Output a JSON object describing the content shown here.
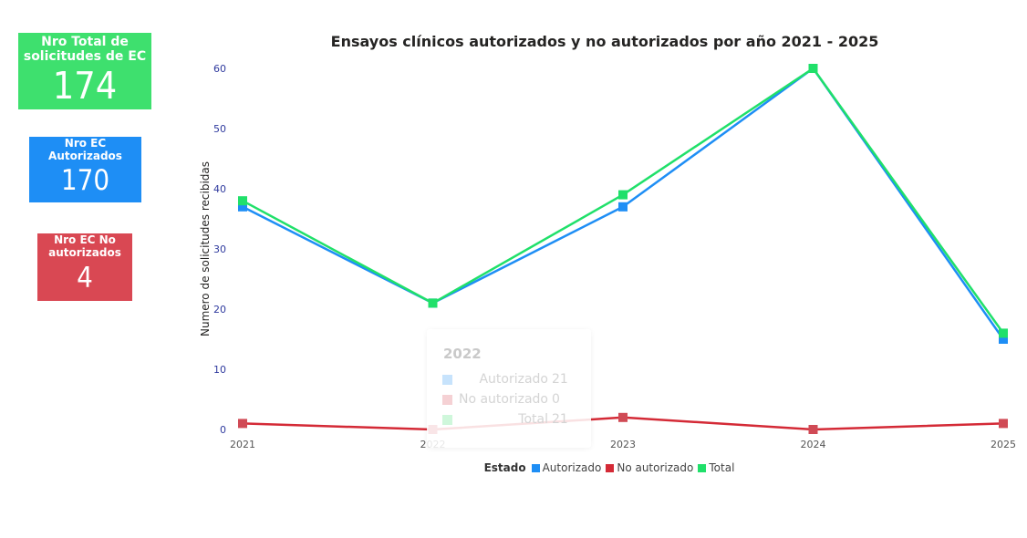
{
  "kpis": {
    "total": {
      "label": "Nro Total de solicitudes de EC",
      "value": "174",
      "color": "#3ee06e"
    },
    "authorized": {
      "label": "Nro EC Autorizados",
      "value": "170",
      "color": "#1e8ef5"
    },
    "not_authorized": {
      "label": "Nro EC No autorizados",
      "value": "4",
      "color": "#d94853"
    }
  },
  "tooltip": {
    "title": "2022",
    "rows": [
      {
        "name": "Autorizado",
        "value": "21",
        "color": "#1e8ef5"
      },
      {
        "name": "No autorizado",
        "value": "0",
        "color": "#d94853"
      },
      {
        "name": "Total",
        "value": "21",
        "color": "#3ee06e"
      }
    ]
  },
  "legend": {
    "title": "Estado"
  },
  "chart_data": {
    "type": "line",
    "title": "Ensayos clínicos autorizados y no autorizados por año 2021 - 2025",
    "xlabel": "",
    "ylabel": "Numero de solicitudes recibidas",
    "categories": [
      "2021",
      "2022",
      "2023",
      "2024",
      "2025"
    ],
    "yticks": [
      0,
      10,
      20,
      30,
      40,
      50,
      60
    ],
    "ylim": [
      0,
      60
    ],
    "grid": false,
    "legend_position": "bottom",
    "series": [
      {
        "name": "Autorizado",
        "values": [
          37,
          21,
          37,
          60,
          15
        ],
        "color": "#1e8ef5"
      },
      {
        "name": "No autorizado",
        "values": [
          1,
          0,
          2,
          0,
          1
        ],
        "color": "#d42a36"
      },
      {
        "name": "Total",
        "values": [
          38,
          21,
          39,
          60,
          16
        ],
        "color": "#20e06a"
      }
    ]
  }
}
